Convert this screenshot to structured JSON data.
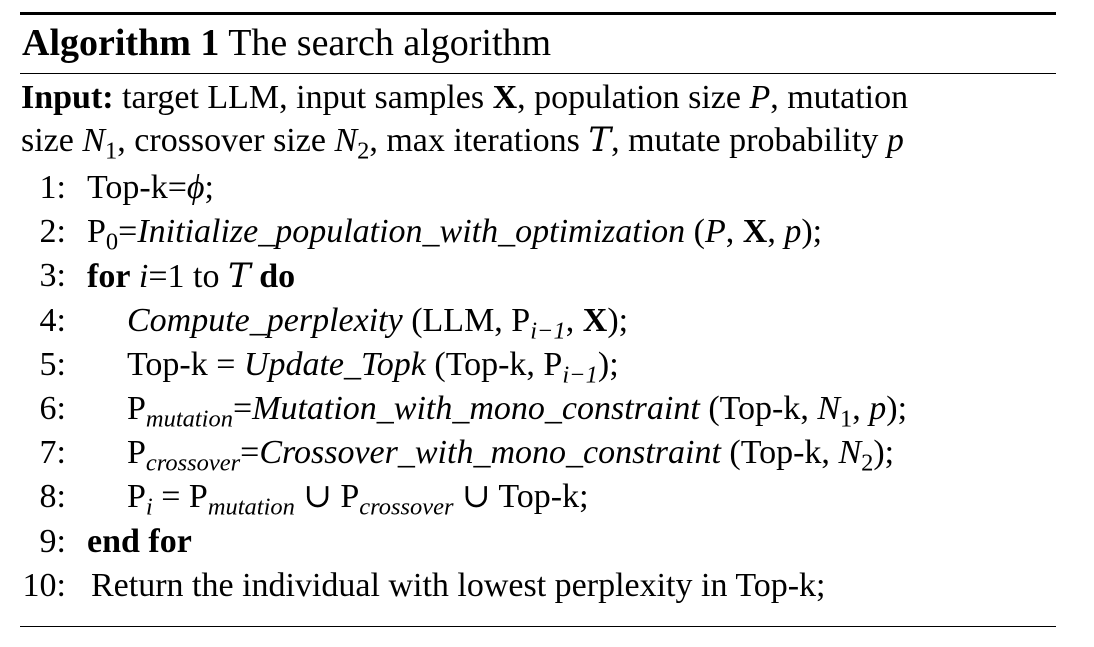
{
  "algorithm": {
    "label": "Algorithm 1",
    "title": "The search algorithm"
  },
  "input": {
    "label": "Input:",
    "line1": {
      "a": " target LLM, input samples ",
      "X": "X",
      "b": ", population size ",
      "P": "P",
      "c": ", mutation"
    },
    "line2": {
      "a": "size ",
      "N1": "N",
      "N1_sub": "1",
      "b": ", crossover size ",
      "N2": "N",
      "N2_sub": "2",
      "c": ", max iterations ",
      "T": "T",
      "d": ", mutate probability ",
      "p": "p"
    }
  },
  "steps": [
    {
      "num": "1:",
      "parts": {
        "a": "Top-k=",
        "phi": "ϕ",
        "b": ";"
      }
    },
    {
      "num": "2:",
      "parts": {
        "a": "P",
        "sub": "0",
        "eq": "=",
        "fn": "Initialize_population_with_optimization",
        "b": " (",
        "P": "P",
        "c": ", ",
        "X": "X",
        "d": ", ",
        "p": "p",
        "e": ");"
      }
    },
    {
      "num": "3:",
      "parts": {
        "kw1": "for",
        "sp": " ",
        "i": "i",
        "a": "=1 to ",
        "T": "T",
        "sp2": " ",
        "kw2": "do"
      }
    },
    {
      "num": "4:",
      "parts": {
        "fn": "Compute_perplexity",
        "a": " (LLM, P",
        "sub": "i−1",
        "b": ", ",
        "X": "X",
        "c": ");"
      }
    },
    {
      "num": "5:",
      "parts": {
        "a": "Top-k = ",
        "fn": "Update_Topk",
        "b": " (Top-k, P",
        "sub": "i−1",
        "c": ");"
      }
    },
    {
      "num": "6:",
      "parts": {
        "a": "P",
        "sub": "mutation",
        "eq": "=",
        "fn": "Mutation_with_mono_constraint",
        "b": " (Top-k, ",
        "N": "N",
        "Nsub": "1",
        "c": ", ",
        "p": "p",
        "d": ");"
      }
    },
    {
      "num": "7:",
      "parts": {
        "a": "P",
        "sub": "crossover",
        "eq": "=",
        "fn": "Crossover_with_mono_constraint",
        "b": " (Top-k, ",
        "N": "N",
        "Nsub": "2",
        "c": ");"
      }
    },
    {
      "num": "8:",
      "parts": {
        "a": "P",
        "sub": "i",
        "b": " = P",
        "sub2": "mutation",
        "c": " ∪ P",
        "sub3": "crossover",
        "d": " ∪ Top-k;"
      }
    },
    {
      "num": "9:",
      "parts": {
        "kw": "end for"
      }
    },
    {
      "num": "10:",
      "parts": {
        "a": "Return the individual with lowest perplexity in Top-k;"
      }
    }
  ]
}
